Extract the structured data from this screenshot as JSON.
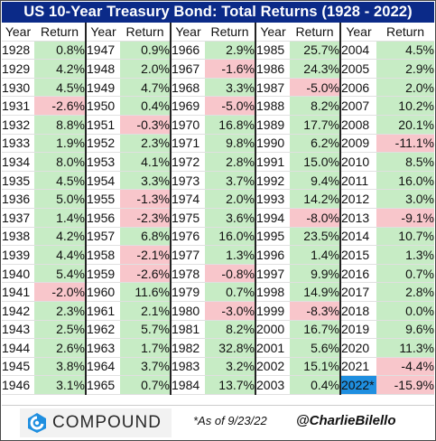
{
  "title": "US 10-Year Treasury Bond: Total Returns (1928 - 2022)",
  "headers": {
    "year": "Year",
    "return": "Return"
  },
  "columns": [
    [
      [
        "1928",
        "0.8%"
      ],
      [
        "1929",
        "4.2%"
      ],
      [
        "1930",
        "4.5%"
      ],
      [
        "1931",
        "-2.6%"
      ],
      [
        "1932",
        "8.8%"
      ],
      [
        "1933",
        "1.9%"
      ],
      [
        "1934",
        "8.0%"
      ],
      [
        "1935",
        "4.5%"
      ],
      [
        "1936",
        "5.0%"
      ],
      [
        "1937",
        "1.4%"
      ],
      [
        "1938",
        "4.2%"
      ],
      [
        "1939",
        "4.4%"
      ],
      [
        "1940",
        "5.4%"
      ],
      [
        "1941",
        "-2.0%"
      ],
      [
        "1942",
        "2.3%"
      ],
      [
        "1943",
        "2.5%"
      ],
      [
        "1944",
        "2.6%"
      ],
      [
        "1945",
        "3.8%"
      ],
      [
        "1946",
        "3.1%"
      ]
    ],
    [
      [
        "1947",
        "0.9%"
      ],
      [
        "1948",
        "2.0%"
      ],
      [
        "1949",
        "4.7%"
      ],
      [
        "1950",
        "0.4%"
      ],
      [
        "1951",
        "-0.3%"
      ],
      [
        "1952",
        "2.3%"
      ],
      [
        "1953",
        "4.1%"
      ],
      [
        "1954",
        "3.3%"
      ],
      [
        "1955",
        "-1.3%"
      ],
      [
        "1956",
        "-2.3%"
      ],
      [
        "1957",
        "6.8%"
      ],
      [
        "1958",
        "-2.1%"
      ],
      [
        "1959",
        "-2.6%"
      ],
      [
        "1960",
        "11.6%"
      ],
      [
        "1961",
        "2.1%"
      ],
      [
        "1962",
        "5.7%"
      ],
      [
        "1963",
        "1.7%"
      ],
      [
        "1964",
        "3.7%"
      ],
      [
        "1965",
        "0.7%"
      ]
    ],
    [
      [
        "1966",
        "2.9%"
      ],
      [
        "1967",
        "-1.6%"
      ],
      [
        "1968",
        "3.3%"
      ],
      [
        "1969",
        "-5.0%"
      ],
      [
        "1970",
        "16.8%"
      ],
      [
        "1971",
        "9.8%"
      ],
      [
        "1972",
        "2.8%"
      ],
      [
        "1973",
        "3.7%"
      ],
      [
        "1974",
        "2.0%"
      ],
      [
        "1975",
        "3.6%"
      ],
      [
        "1976",
        "16.0%"
      ],
      [
        "1977",
        "1.3%"
      ],
      [
        "1978",
        "-0.8%"
      ],
      [
        "1979",
        "0.7%"
      ],
      [
        "1980",
        "-3.0%"
      ],
      [
        "1981",
        "8.2%"
      ],
      [
        "1982",
        "32.8%"
      ],
      [
        "1983",
        "3.2%"
      ],
      [
        "1984",
        "13.7%"
      ]
    ],
    [
      [
        "1985",
        "25.7%"
      ],
      [
        "1986",
        "24.3%"
      ],
      [
        "1987",
        "-5.0%"
      ],
      [
        "1988",
        "8.2%"
      ],
      [
        "1989",
        "17.7%"
      ],
      [
        "1990",
        "6.2%"
      ],
      [
        "1991",
        "15.0%"
      ],
      [
        "1992",
        "9.4%"
      ],
      [
        "1993",
        "14.2%"
      ],
      [
        "1994",
        "-8.0%"
      ],
      [
        "1995",
        "23.5%"
      ],
      [
        "1996",
        "1.4%"
      ],
      [
        "1997",
        "9.9%"
      ],
      [
        "1998",
        "14.9%"
      ],
      [
        "1999",
        "-8.3%"
      ],
      [
        "2000",
        "16.7%"
      ],
      [
        "2001",
        "5.6%"
      ],
      [
        "2002",
        "15.1%"
      ],
      [
        "2003",
        "0.4%"
      ]
    ],
    [
      [
        "2004",
        "4.5%"
      ],
      [
        "2005",
        "2.9%"
      ],
      [
        "2006",
        "2.0%"
      ],
      [
        "2007",
        "10.2%"
      ],
      [
        "2008",
        "20.1%"
      ],
      [
        "2009",
        "-11.1%"
      ],
      [
        "2010",
        "8.5%"
      ],
      [
        "2011",
        "16.0%"
      ],
      [
        "2012",
        "3.0%"
      ],
      [
        "2013",
        "-9.1%"
      ],
      [
        "2014",
        "10.7%"
      ],
      [
        "2015",
        "1.3%"
      ],
      [
        "2016",
        "0.7%"
      ],
      [
        "2017",
        "2.8%"
      ],
      [
        "2018",
        "0.0%"
      ],
      [
        "2019",
        "9.6%"
      ],
      [
        "2020",
        "11.3%"
      ],
      [
        "2021",
        "-4.4%"
      ],
      [
        "2022*",
        "-15.9%"
      ]
    ]
  ],
  "highlighted_year": "2022*",
  "colors": {
    "positive": "#c7ecc5",
    "negative": "#f8c6cb",
    "title_bg": "#0b2a88",
    "highlight": "#1f8fe0"
  },
  "footer": {
    "logo_text": "COMPOUND",
    "logo_icon": "compound-logo-icon",
    "as_of": "*As of 9/23/22",
    "handle": "@CharlieBilello"
  }
}
